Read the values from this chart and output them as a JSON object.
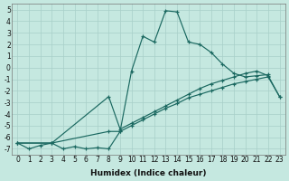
{
  "xlabel": "Humidex (Indice chaleur)",
  "bg_color": "#c5e8e0",
  "grid_color": "#a8cfc8",
  "line_color": "#1a6860",
  "xlim": [
    -0.5,
    23.5
  ],
  "ylim": [
    -7.5,
    5.5
  ],
  "xticks": [
    0,
    1,
    2,
    3,
    4,
    5,
    6,
    7,
    8,
    9,
    10,
    11,
    12,
    13,
    14,
    15,
    16,
    17,
    18,
    19,
    20,
    21,
    22,
    23
  ],
  "yticks": [
    -7,
    -6,
    -5,
    -4,
    -3,
    -2,
    -1,
    0,
    1,
    2,
    3,
    4,
    5
  ],
  "line1_x": [
    0,
    1,
    2,
    3,
    4,
    5,
    6,
    7,
    8,
    9,
    10,
    11,
    12,
    13,
    14,
    15,
    16,
    17,
    18,
    19,
    20,
    21,
    22
  ],
  "line1_y": [
    -6.5,
    -7.0,
    -6.7,
    -6.5,
    -7.0,
    -6.8,
    -7.0,
    -6.9,
    -7.0,
    -5.5,
    -0.3,
    2.7,
    2.2,
    4.9,
    4.8,
    2.2,
    2.0,
    1.3,
    0.3,
    -0.5,
    -0.8,
    -0.7,
    -0.6
  ],
  "line2_x": [
    0,
    3,
    8,
    9,
    10,
    11,
    12,
    13,
    14,
    15,
    16,
    17,
    18,
    19,
    20,
    21,
    22,
    23
  ],
  "line2_y": [
    -6.5,
    -6.5,
    -2.5,
    -5.3,
    -4.8,
    -4.3,
    -3.8,
    -3.3,
    -2.8,
    -2.3,
    -1.8,
    -1.4,
    -1.1,
    -0.8,
    -0.5,
    -0.3,
    -0.7,
    -2.5
  ],
  "line3_x": [
    0,
    3,
    8,
    9,
    10,
    11,
    12,
    13,
    14,
    15,
    16,
    17,
    18,
    19,
    20,
    21,
    22,
    23
  ],
  "line3_y": [
    -6.5,
    -6.5,
    -5.5,
    -5.5,
    -5.0,
    -4.5,
    -4.0,
    -3.5,
    -3.1,
    -2.6,
    -2.3,
    -2.0,
    -1.7,
    -1.4,
    -1.2,
    -1.0,
    -0.8,
    -2.5
  ],
  "tick_fontsize": 5.5,
  "xlabel_fontsize": 6.5
}
